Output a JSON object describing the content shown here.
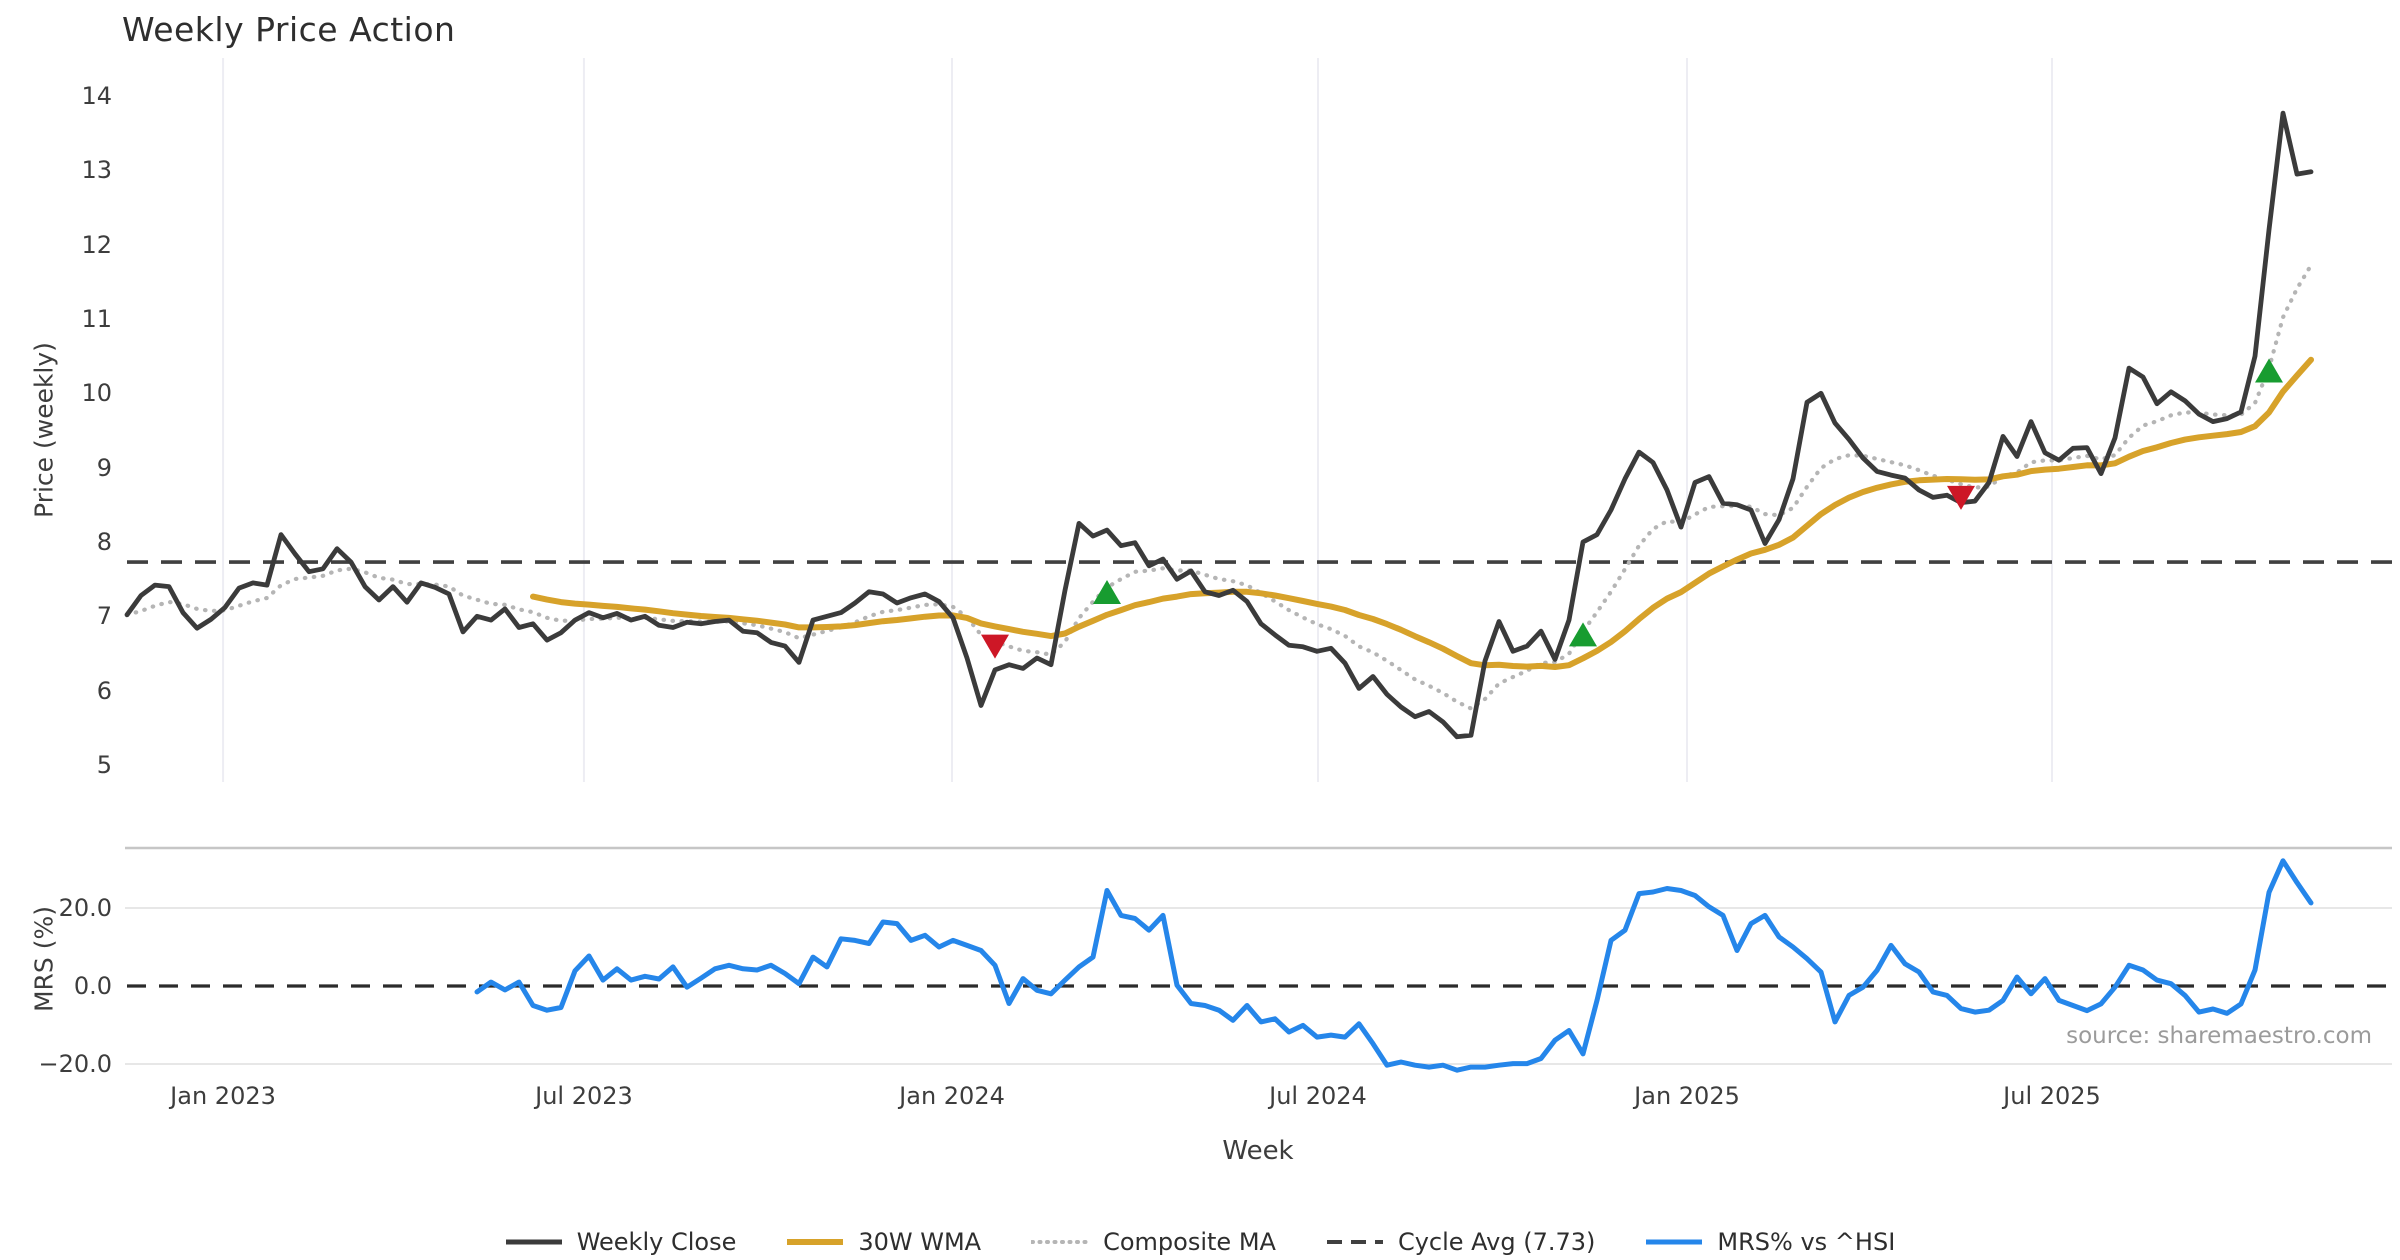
{
  "title": "Weekly Price Action",
  "source_note": "source: sharemaestro.com",
  "chart_data": {
    "type": "line",
    "title": "Weekly Price Action",
    "xlabel": "Week",
    "grid": "vertical-on-price-panel, horizontal-on-mrs-panel",
    "legend_position": "bottom-center",
    "xticks": [
      {
        "label": "Jan 2023",
        "week": 6.86
      },
      {
        "label": "Jul 2023",
        "week": 32.64
      },
      {
        "label": "Jan 2024",
        "week": 58.93
      },
      {
        "label": "Jul 2024",
        "week": 85.07
      },
      {
        "label": "Jan 2025",
        "week": 111.43
      },
      {
        "label": "Jul 2025",
        "week": 137.5
      }
    ],
    "panels": [
      {
        "name": "price",
        "ylabel": "Price (weekly)",
        "ylim": [
          4.77,
          14.5
        ],
        "yticks": [
          "5",
          "6",
          "7",
          "8",
          "9",
          "10",
          "11",
          "12",
          "13",
          "14"
        ],
        "cycle_avg": 7.73,
        "series": [
          {
            "name": "Weekly Close",
            "color": "#3b3b3b",
            "style": "solid",
            "width": 4.8,
            "start_week": 0,
            "values": [
              7.02,
              7.28,
              7.42,
              7.4,
              7.05,
              6.84,
              6.96,
              7.12,
              7.38,
              7.45,
              7.42,
              8.1,
              7.84,
              7.6,
              7.64,
              7.91,
              7.73,
              7.4,
              7.22,
              7.4,
              7.19,
              7.45,
              7.39,
              7.3,
              6.79,
              7.0,
              6.95,
              7.1,
              6.85,
              6.9,
              6.68,
              6.78,
              6.95,
              7.05,
              6.98,
              7.04,
              6.95,
              7.0,
              6.88,
              6.85,
              6.92,
              6.9,
              6.93,
              6.95,
              6.8,
              6.78,
              6.65,
              6.6,
              6.38,
              6.95,
              7.0,
              7.05,
              7.18,
              7.33,
              7.3,
              7.18,
              7.25,
              7.3,
              7.2,
              6.98,
              6.44,
              5.8,
              6.28,
              6.35,
              6.3,
              6.44,
              6.35,
              7.35,
              8.25,
              8.08,
              8.16,
              7.95,
              7.99,
              7.68,
              7.77,
              7.5,
              7.61,
              7.33,
              7.28,
              7.35,
              7.2,
              6.9,
              6.75,
              6.61,
              6.59,
              6.53,
              6.57,
              6.37,
              6.03,
              6.19,
              5.95,
              5.78,
              5.65,
              5.72,
              5.58,
              5.38,
              5.4,
              6.4,
              6.93,
              6.53,
              6.6,
              6.8,
              6.42,
              6.95,
              8.0,
              8.1,
              8.43,
              8.85,
              9.21,
              9.07,
              8.7,
              8.2,
              8.8,
              8.88,
              8.52,
              8.5,
              8.43,
              7.98,
              8.3,
              8.85,
              9.88,
              10.0,
              9.6,
              9.38,
              9.13,
              8.95,
              8.9,
              8.86,
              8.7,
              8.6,
              8.63,
              8.53,
              8.55,
              8.8,
              9.42,
              9.15,
              9.62,
              9.2,
              9.1,
              9.26,
              9.27,
              8.92,
              9.4,
              10.34,
              10.22,
              9.86,
              10.02,
              9.9,
              9.72,
              9.62,
              9.66,
              9.75,
              10.5,
              12.2,
              13.77,
              12.95,
              12.98
            ]
          },
          {
            "name": "30W WMA",
            "color": "#d7a22a",
            "style": "solid",
            "width": 6,
            "derived": "wma",
            "window": 30
          },
          {
            "name": "Composite MA",
            "color": "#b5b5b5",
            "style": "dotted",
            "width": 4.2,
            "derived": "ema",
            "span": 9
          },
          {
            "name": "Cycle Avg (7.73)",
            "color": "#404040",
            "style": "dashed",
            "width": 3.6,
            "derived": "hline",
            "value": 7.73
          }
        ],
        "signals": {
          "buy": {
            "color": "#189c30",
            "shape": "triangle-up",
            "points": [
              {
                "week": 70,
                "value": 7.3
              },
              {
                "week": 104,
                "value": 6.73
              },
              {
                "week": 153,
                "value": 10.28
              }
            ]
          },
          "sell": {
            "color": "#cd1726",
            "shape": "triangle-down",
            "points": [
              {
                "week": 62,
                "value": 6.62
              },
              {
                "week": 131,
                "value": 8.62
              }
            ]
          }
        }
      },
      {
        "name": "mrs",
        "ylabel": "MRS (%)",
        "ylim": [
          -23.5,
          35.4
        ],
        "yticks": [
          {
            "label": "20.0",
            "value": 20
          },
          {
            "label": "0.0",
            "value": 0
          },
          {
            "label": "−20.0",
            "value": -20
          }
        ],
        "zero_line": 0,
        "series": [
          {
            "name": "MRS% vs ^HSI",
            "color": "#2586ea",
            "style": "solid",
            "width": 5,
            "start_week": 25,
            "values": [
              -1.5,
              1.0,
              -1.0,
              1.0,
              -5.0,
              -6.2,
              -5.5,
              3.9,
              7.7,
              1.5,
              4.4,
              1.5,
              2.5,
              1.8,
              4.9,
              -0.3,
              2.0,
              4.4,
              5.3,
              4.4,
              4.1,
              5.3,
              3.2,
              0.6,
              7.4,
              4.9,
              12.1,
              11.7,
              10.9,
              16.4,
              16.0,
              11.7,
              13.0,
              10.0,
              11.7,
              10.4,
              9.1,
              5.3,
              -4.5,
              1.9,
              -1.1,
              -2.0,
              1.5,
              4.9,
              7.4,
              24.5,
              18.1,
              17.3,
              14.3,
              18.1,
              0.2,
              -4.5,
              -5.0,
              -6.2,
              -8.8,
              -5.0,
              -9.2,
              -8.4,
              -11.8,
              -10.1,
              -13.1,
              -12.6,
              -13.1,
              -9.7,
              -14.8,
              -20.3,
              -19.5,
              -20.3,
              -20.8,
              -20.3,
              -21.6,
              -20.8,
              -20.8,
              -20.3,
              -19.9,
              -19.9,
              -18.6,
              -13.9,
              -11.4,
              -17.4,
              -3.7,
              11.7,
              14.3,
              23.7,
              24.1,
              25.0,
              24.5,
              23.2,
              20.3,
              18.1,
              9.1,
              16.0,
              18.1,
              12.6,
              10.0,
              7.0,
              3.6,
              -9.2,
              -2.4,
              -0.3,
              4.0,
              10.4,
              5.7,
              3.6,
              -1.5,
              -2.4,
              -5.8,
              -6.7,
              -6.2,
              -3.7,
              2.3,
              -2.0,
              1.9,
              -3.7,
              -5.0,
              -6.3,
              -4.6,
              -0.3,
              5.3,
              4.1,
              1.5,
              0.6,
              -2.4,
              -6.7,
              -5.9,
              -7.0,
              -4.6,
              4.1,
              24.0,
              32.1,
              26.5,
              21.3
            ]
          }
        ]
      }
    ],
    "legend": [
      {
        "label": "Weekly Close",
        "color": "#3b3b3b",
        "style": "solid",
        "width": 5
      },
      {
        "label": "30W WMA",
        "color": "#d7a22a",
        "style": "solid",
        "width": 6
      },
      {
        "label": "Composite MA",
        "color": "#b5b5b5",
        "style": "dotted",
        "width": 4
      },
      {
        "label": "Cycle Avg (7.73)",
        "color": "#404040",
        "style": "dashed",
        "width": 4
      },
      {
        "label": "MRS% vs ^HSI",
        "color": "#2586ea",
        "style": "solid",
        "width": 5
      }
    ],
    "colors": {
      "grid_vertical": "#ededf3",
      "grid_horizontal": "#e7e7e7",
      "panel_divider": "#c6c6c6",
      "tick_text": "#3d3d3d",
      "source_text": "#9b9b9b"
    }
  }
}
